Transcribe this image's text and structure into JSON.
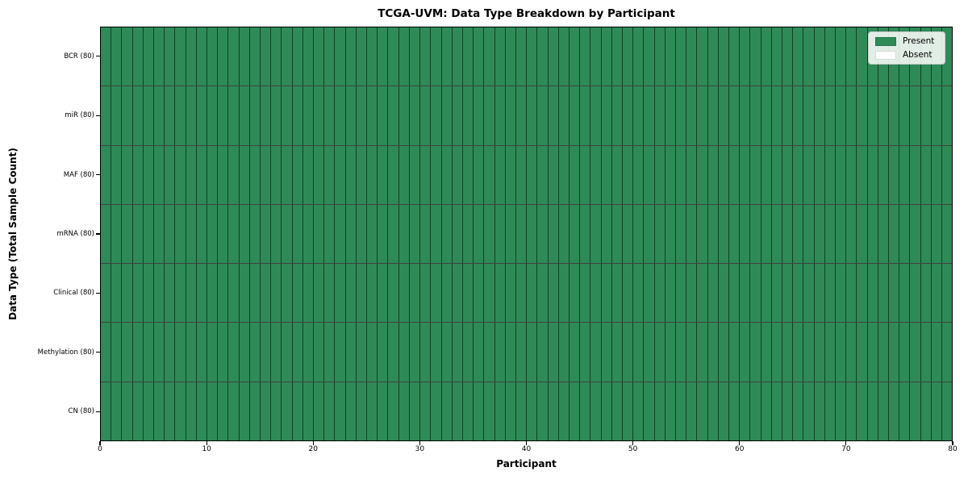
{
  "chart_data": {
    "type": "heatmap",
    "title": "TCGA-UVM: Data Type Breakdown by Participant",
    "xlabel": "Participant",
    "ylabel": "Data Type (Total Sample Count)",
    "xlim": [
      0,
      80
    ],
    "x_ticks": [
      0,
      10,
      20,
      30,
      40,
      50,
      60,
      70,
      80
    ],
    "n_participants": 80,
    "grid": "cell borders on, all cells filled",
    "rows": [
      {
        "label": "BCR (80)",
        "present_count": 80,
        "absent_count": 0
      },
      {
        "label": "miR (80)",
        "present_count": 80,
        "absent_count": 0
      },
      {
        "label": "MAF (80)",
        "present_count": 80,
        "absent_count": 0
      },
      {
        "label": "mRNA (80)",
        "present_count": 80,
        "absent_count": 0
      },
      {
        "label": "Clinical (80)",
        "present_count": 80,
        "absent_count": 0
      },
      {
        "label": "Methylation (80)",
        "present_count": 80,
        "absent_count": 0
      },
      {
        "label": "CN (80)",
        "present_count": 80,
        "absent_count": 0
      }
    ],
    "legend": {
      "position": "upper right",
      "entries": [
        {
          "label": "Present",
          "color": "#2e8b57"
        },
        {
          "label": "Absent",
          "color": "#ffffff"
        }
      ]
    },
    "colors": {
      "present": "#2e8b57",
      "absent": "#ffffff",
      "cell_border": "rgba(0,0,0,0.55)",
      "spine": "#000000"
    }
  }
}
